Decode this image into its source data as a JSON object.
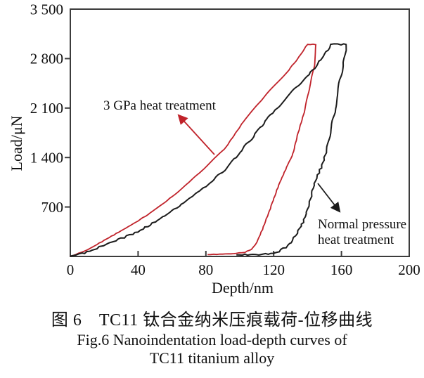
{
  "chart_data": {
    "type": "line",
    "title": "",
    "xlabel": "Depth/nm",
    "ylabel": "Load/μN",
    "xlim": [
      0,
      200
    ],
    "ylim": [
      0,
      3500
    ],
    "grid": false,
    "legend_position": "none (arrow annotations inside plot)",
    "x_tick_labels": [
      "0",
      "40",
      "80",
      "120",
      "160",
      "200"
    ],
    "y_tick_labels": [
      "700",
      "1 400",
      "2 100",
      "2 800",
      "3 500"
    ],
    "axis_color": "#3c3c3c",
    "series": [
      {
        "name": "3 GPa heat treatment",
        "color": "#c0222a",
        "noise": 0.35,
        "description": "loading to ~3000 uN at ~145 nm, hold, unloading to residual depth ~81 nm",
        "points": [
          [
            0,
            0
          ],
          [
            10,
            95
          ],
          [
            20,
            230
          ],
          [
            30,
            360
          ],
          [
            40,
            500
          ],
          [
            50,
            665
          ],
          [
            60,
            845
          ],
          [
            70,
            1050
          ],
          [
            80,
            1270
          ],
          [
            91,
            1520
          ],
          [
            103,
            1940
          ],
          [
            116,
            2300
          ],
          [
            129,
            2640
          ],
          [
            136,
            2860
          ],
          [
            140,
            3000
          ],
          [
            145,
            3000
          ],
          [
            144,
            2700
          ],
          [
            141,
            2370
          ],
          [
            138,
            2040
          ],
          [
            134,
            1710
          ],
          [
            131,
            1420
          ],
          [
            129,
            1340
          ],
          [
            123,
            1010
          ],
          [
            118,
            680
          ],
          [
            114,
            420
          ],
          [
            110,
            200
          ],
          [
            107,
            100
          ],
          [
            103,
            60
          ],
          [
            98,
            42
          ],
          [
            95,
            38
          ],
          [
            88,
            32
          ],
          [
            81,
            26
          ]
        ]
      },
      {
        "name": "Normal pressure heat treatment",
        "color": "#1b1b1b",
        "noise": 0.9,
        "description": "loading to ~3000 uN at ~163 nm, hold, unloading to residual depth ~98 nm",
        "points": [
          [
            0,
            0
          ],
          [
            10,
            60
          ],
          [
            20,
            160
          ],
          [
            30,
            255
          ],
          [
            40,
            350
          ],
          [
            50,
            490
          ],
          [
            60,
            645
          ],
          [
            70,
            815
          ],
          [
            80,
            995
          ],
          [
            91,
            1220
          ],
          [
            100,
            1470
          ],
          [
            108,
            1700
          ],
          [
            116,
            1940
          ],
          [
            123,
            2130
          ],
          [
            130,
            2310
          ],
          [
            141,
            2570
          ],
          [
            148,
            2790
          ],
          [
            154,
            3000
          ],
          [
            163,
            3000
          ],
          [
            161,
            2700
          ],
          [
            158,
            2370
          ],
          [
            156,
            2040
          ],
          [
            153,
            1710
          ],
          [
            151,
            1470
          ],
          [
            148,
            1260
          ],
          [
            144,
            1040
          ],
          [
            141,
            750
          ],
          [
            138,
            520
          ],
          [
            136,
            420
          ],
          [
            133,
            300
          ],
          [
            130,
            200
          ],
          [
            127,
            130
          ],
          [
            123,
            70
          ],
          [
            120,
            45
          ],
          [
            115,
            32
          ],
          [
            108,
            26
          ],
          [
            103,
            24
          ],
          [
            98,
            22
          ]
        ]
      }
    ],
    "annotations": [
      {
        "text": "3 GPa heat treatment",
        "color": "#c0222a",
        "arrow": "from curve (305,220) to text (252,162)"
      },
      {
        "line1": "Normal pressure",
        "line2": "heat treatment",
        "color": "#1b1b1b",
        "arrow": "from curve (452,261) to text (485,303)"
      }
    ]
  },
  "caption": {
    "line1_zh": "图 6　TC11 钛合金纳米压痕载荷-位移曲线",
    "line2_en": "Fig.6 Nanoindentation load-depth curves of",
    "line3_en": "TC11 titanium alloy"
  }
}
